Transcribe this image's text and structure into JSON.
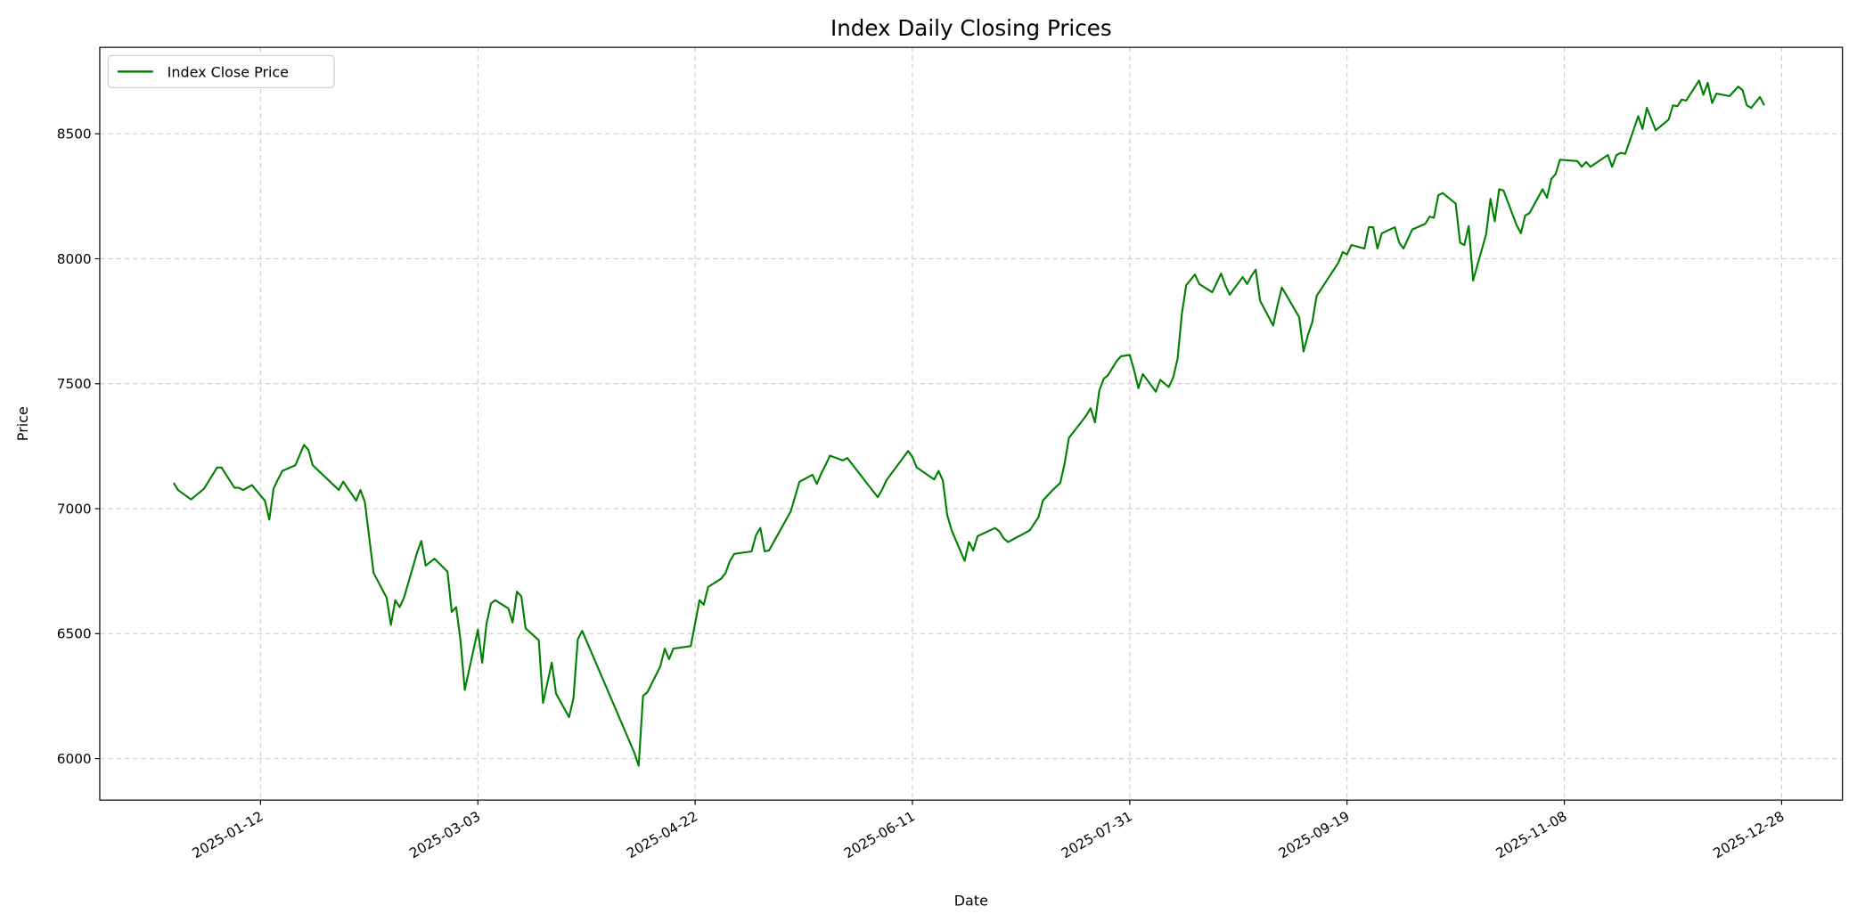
{
  "chart_data": {
    "type": "line",
    "title": "Index Daily Closing Prices",
    "xlabel": "Date",
    "ylabel": "Price",
    "xlim": [
      "2024-12-06",
      "2026-01-11"
    ],
    "ylim": [
      5834,
      8846
    ],
    "x_ticks": [
      "2025-01-12",
      "2025-03-03",
      "2025-04-22",
      "2025-06-11",
      "2025-07-31",
      "2025-09-19",
      "2025-11-08",
      "2025-12-28"
    ],
    "y_ticks": [
      6000,
      6500,
      7000,
      7500,
      8000,
      8500
    ],
    "grid": true,
    "legend_placement": "upper-left",
    "series": [
      {
        "name": "Index Close Price",
        "color": "#008000",
        "points": [
          [
            "2024-12-23",
            7103
          ],
          [
            "2024-12-24",
            7075
          ],
          [
            "2024-12-27",
            7037
          ],
          [
            "2024-12-30",
            7080
          ],
          [
            "2025-01-02",
            7165
          ],
          [
            "2025-01-03",
            7165
          ],
          [
            "2025-01-06",
            7084
          ],
          [
            "2025-01-07",
            7084
          ],
          [
            "2025-01-08",
            7075
          ],
          [
            "2025-01-10",
            7094
          ],
          [
            "2025-01-13",
            7032
          ],
          [
            "2025-01-14",
            6956
          ],
          [
            "2025-01-15",
            7080
          ],
          [
            "2025-01-16",
            7117
          ],
          [
            "2025-01-17",
            7151
          ],
          [
            "2025-01-20",
            7174
          ],
          [
            "2025-01-22",
            7255
          ],
          [
            "2025-01-23",
            7236
          ],
          [
            "2025-01-24",
            7174
          ],
          [
            "2025-01-30",
            7075
          ],
          [
            "2025-01-31",
            7108
          ],
          [
            "2025-02-03",
            7032
          ],
          [
            "2025-02-04",
            7075
          ],
          [
            "2025-02-05",
            7027
          ],
          [
            "2025-02-07",
            6743
          ],
          [
            "2025-02-10",
            6644
          ],
          [
            "2025-02-11",
            6535
          ],
          [
            "2025-02-12",
            6634
          ],
          [
            "2025-02-13",
            6606
          ],
          [
            "2025-02-14",
            6644
          ],
          [
            "2025-02-17",
            6824
          ],
          [
            "2025-02-18",
            6871
          ],
          [
            "2025-02-19",
            6772
          ],
          [
            "2025-02-20",
            6786
          ],
          [
            "2025-02-21",
            6800
          ],
          [
            "2025-02-24",
            6748
          ],
          [
            "2025-02-25",
            6587
          ],
          [
            "2025-02-26",
            6606
          ],
          [
            "2025-02-27",
            6474
          ],
          [
            "2025-02-28",
            6275
          ],
          [
            "2025-03-03",
            6516
          ],
          [
            "2025-03-04",
            6384
          ],
          [
            "2025-03-05",
            6540
          ],
          [
            "2025-03-06",
            6620
          ],
          [
            "2025-03-07",
            6634
          ],
          [
            "2025-03-10",
            6601
          ],
          [
            "2025-03-11",
            6545
          ],
          [
            "2025-03-12",
            6668
          ],
          [
            "2025-03-13",
            6649
          ],
          [
            "2025-03-14",
            6521
          ],
          [
            "2025-03-17",
            6474
          ],
          [
            "2025-03-18",
            6223
          ],
          [
            "2025-03-20",
            6384
          ],
          [
            "2025-03-21",
            6260
          ],
          [
            "2025-03-24",
            6166
          ],
          [
            "2025-03-25",
            6241
          ],
          [
            "2025-03-26",
            6478
          ],
          [
            "2025-03-27",
            6511
          ],
          [
            "2025-04-08",
            6024
          ],
          [
            "2025-04-09",
            5972
          ],
          [
            "2025-04-10",
            6251
          ],
          [
            "2025-04-11",
            6265
          ],
          [
            "2025-04-14",
            6369
          ],
          [
            "2025-04-15",
            6440
          ],
          [
            "2025-04-16",
            6398
          ],
          [
            "2025-04-17",
            6440
          ],
          [
            "2025-04-21",
            6450
          ],
          [
            "2025-04-23",
            6634
          ],
          [
            "2025-04-24",
            6616
          ],
          [
            "2025-04-25",
            6687
          ],
          [
            "2025-04-28",
            6720
          ],
          [
            "2025-04-29",
            6743
          ],
          [
            "2025-04-30",
            6791
          ],
          [
            "2025-05-01",
            6819
          ],
          [
            "2025-05-05",
            6829
          ],
          [
            "2025-05-06",
            6895
          ],
          [
            "2025-05-07",
            6923
          ],
          [
            "2025-05-08",
            6829
          ],
          [
            "2025-05-09",
            6833
          ],
          [
            "2025-05-14",
            6990
          ],
          [
            "2025-05-16",
            7108
          ],
          [
            "2025-05-19",
            7136
          ],
          [
            "2025-05-20",
            7099
          ],
          [
            "2025-05-21",
            7141
          ],
          [
            "2025-05-22",
            7174
          ],
          [
            "2025-05-23",
            7212
          ],
          [
            "2025-05-26",
            7193
          ],
          [
            "2025-05-27",
            7203
          ],
          [
            "2025-06-03",
            7046
          ],
          [
            "2025-06-04",
            7075
          ],
          [
            "2025-06-05",
            7113
          ],
          [
            "2025-06-10",
            7231
          ],
          [
            "2025-06-11",
            7207
          ],
          [
            "2025-06-12",
            7165
          ],
          [
            "2025-06-16",
            7117
          ],
          [
            "2025-06-17",
            7151
          ],
          [
            "2025-06-18",
            7113
          ],
          [
            "2025-06-19",
            6975
          ],
          [
            "2025-06-20",
            6914
          ],
          [
            "2025-06-23",
            6791
          ],
          [
            "2025-06-24",
            6867
          ],
          [
            "2025-06-25",
            6833
          ],
          [
            "2025-06-26",
            6890
          ],
          [
            "2025-06-30",
            6923
          ],
          [
            "2025-07-01",
            6909
          ],
          [
            "2025-07-02",
            6881
          ],
          [
            "2025-07-03",
            6867
          ],
          [
            "2025-07-07",
            6904
          ],
          [
            "2025-07-08",
            6914
          ],
          [
            "2025-07-10",
            6966
          ],
          [
            "2025-07-11",
            7032
          ],
          [
            "2025-07-13",
            7070
          ],
          [
            "2025-07-15",
            7103
          ],
          [
            "2025-07-16",
            7179
          ],
          [
            "2025-07-17",
            7283
          ],
          [
            "2025-07-21",
            7373
          ],
          [
            "2025-07-22",
            7402
          ],
          [
            "2025-07-23",
            7345
          ],
          [
            "2025-07-24",
            7473
          ],
          [
            "2025-07-25",
            7520
          ],
          [
            "2025-07-26",
            7534
          ],
          [
            "2025-07-28",
            7591
          ],
          [
            "2025-07-29",
            7610
          ],
          [
            "2025-07-31",
            7615
          ],
          [
            "2025-08-01",
            7553
          ],
          [
            "2025-08-02",
            7482
          ],
          [
            "2025-08-03",
            7539
          ],
          [
            "2025-08-04",
            7515
          ],
          [
            "2025-08-06",
            7468
          ],
          [
            "2025-08-07",
            7515
          ],
          [
            "2025-08-09",
            7487
          ],
          [
            "2025-08-10",
            7525
          ],
          [
            "2025-08-11",
            7600
          ],
          [
            "2025-08-12",
            7780
          ],
          [
            "2025-08-13",
            7894
          ],
          [
            "2025-08-15",
            7937
          ],
          [
            "2025-08-16",
            7899
          ],
          [
            "2025-08-19",
            7866
          ],
          [
            "2025-08-21",
            7941
          ],
          [
            "2025-08-22",
            7894
          ],
          [
            "2025-08-23",
            7856
          ],
          [
            "2025-08-26",
            7927
          ],
          [
            "2025-08-27",
            7899
          ],
          [
            "2025-08-28",
            7932
          ],
          [
            "2025-08-29",
            7956
          ],
          [
            "2025-08-30",
            7832
          ],
          [
            "2025-09-02",
            7733
          ],
          [
            "2025-09-03",
            7814
          ],
          [
            "2025-09-04",
            7885
          ],
          [
            "2025-09-08",
            7766
          ],
          [
            "2025-09-09",
            7629
          ],
          [
            "2025-09-10",
            7695
          ],
          [
            "2025-09-11",
            7747
          ],
          [
            "2025-09-12",
            7851
          ],
          [
            "2025-09-17",
            7984
          ],
          [
            "2025-09-18",
            8027
          ],
          [
            "2025-09-19",
            8017
          ],
          [
            "2025-09-20",
            8055
          ],
          [
            "2025-09-23",
            8041
          ],
          [
            "2025-09-24",
            8126
          ],
          [
            "2025-09-25",
            8126
          ],
          [
            "2025-09-26",
            8041
          ],
          [
            "2025-09-27",
            8102
          ],
          [
            "2025-09-30",
            8126
          ],
          [
            "2025-10-01",
            8064
          ],
          [
            "2025-10-02",
            8041
          ],
          [
            "2025-10-04",
            8117
          ],
          [
            "2025-10-07",
            8140
          ],
          [
            "2025-10-08",
            8169
          ],
          [
            "2025-10-09",
            8164
          ],
          [
            "2025-10-10",
            8254
          ],
          [
            "2025-10-11",
            8263
          ],
          [
            "2025-10-14",
            8221
          ],
          [
            "2025-10-15",
            8064
          ],
          [
            "2025-10-16",
            8055
          ],
          [
            "2025-10-17",
            8131
          ],
          [
            "2025-10-18",
            7913
          ],
          [
            "2025-10-21",
            8098
          ],
          [
            "2025-10-22",
            8240
          ],
          [
            "2025-10-23",
            8150
          ],
          [
            "2025-10-24",
            8278
          ],
          [
            "2025-10-25",
            8273
          ],
          [
            "2025-10-28",
            8135
          ],
          [
            "2025-10-29",
            8102
          ],
          [
            "2025-10-30",
            8173
          ],
          [
            "2025-10-31",
            8183
          ],
          [
            "2025-11-03",
            8278
          ],
          [
            "2025-11-04",
            8244
          ],
          [
            "2025-11-05",
            8320
          ],
          [
            "2025-11-06",
            8339
          ],
          [
            "2025-11-07",
            8396
          ],
          [
            "2025-11-11",
            8391
          ],
          [
            "2025-11-12",
            8368
          ],
          [
            "2025-11-13",
            8387
          ],
          [
            "2025-11-14",
            8368
          ],
          [
            "2025-11-18",
            8415
          ],
          [
            "2025-11-19",
            8368
          ],
          [
            "2025-11-20",
            8415
          ],
          [
            "2025-11-21",
            8424
          ],
          [
            "2025-11-22",
            8420
          ],
          [
            "2025-11-24",
            8519
          ],
          [
            "2025-11-25",
            8571
          ],
          [
            "2025-11-26",
            8519
          ],
          [
            "2025-11-27",
            8604
          ],
          [
            "2025-11-29",
            8514
          ],
          [
            "2025-12-02",
            8557
          ],
          [
            "2025-12-03",
            8614
          ],
          [
            "2025-12-04",
            8610
          ],
          [
            "2025-12-05",
            8637
          ],
          [
            "2025-12-06",
            8633
          ],
          [
            "2025-12-09",
            8713
          ],
          [
            "2025-12-10",
            8656
          ],
          [
            "2025-12-11",
            8704
          ],
          [
            "2025-12-12",
            8623
          ],
          [
            "2025-12-13",
            8661
          ],
          [
            "2025-12-16",
            8651
          ],
          [
            "2025-12-18",
            8689
          ],
          [
            "2025-12-19",
            8675
          ],
          [
            "2025-12-20",
            8614
          ],
          [
            "2025-12-21",
            8604
          ],
          [
            "2025-12-23",
            8647
          ],
          [
            "2025-12-24",
            8614
          ]
        ]
      }
    ]
  }
}
